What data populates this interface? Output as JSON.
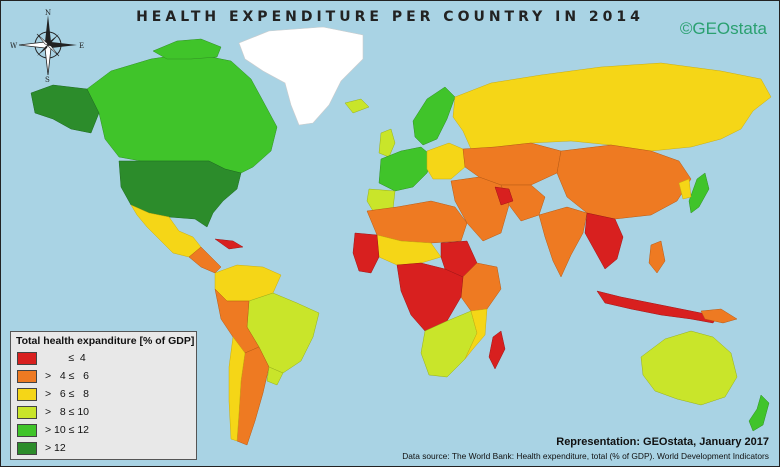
{
  "title": "HEALTH EXPENDITURE PER COUNTRY IN 2014",
  "brand": "©GEOstata",
  "compass": {
    "north": "N",
    "south": "S",
    "east": "E",
    "west": "W"
  },
  "legend": {
    "title": "Total health expanditure [% of GDP]",
    "items": [
      {
        "label": "        ≤  4",
        "color": "#d8201f"
      },
      {
        "label": ">   4 ≤   6",
        "color": "#ee7a22"
      },
      {
        "label": ">   6 ≤   8",
        "color": "#f5d617"
      },
      {
        "label": ">   8 ≤ 10",
        "color": "#c9e52a"
      },
      {
        "label": "> 10 ≤ 12",
        "color": "#40c42a"
      },
      {
        "label": "> 12",
        "color": "#2c8c2b"
      }
    ]
  },
  "credit": "Representation: GEOstata, January 2017",
  "source": "Data source: The World Bank: Health expenditure, total (% of GDP). World Development Indicators",
  "colors": {
    "ocean": "#a9d3e4",
    "greenland": "#ffffff",
    "class_le4": "#d8201f",
    "class_4_6": "#ee7a22",
    "class_6_8": "#f5d617",
    "class_8_10": "#c9e52a",
    "class_10_12": "#40c42a",
    "class_gt12": "#2c8c2b"
  }
}
